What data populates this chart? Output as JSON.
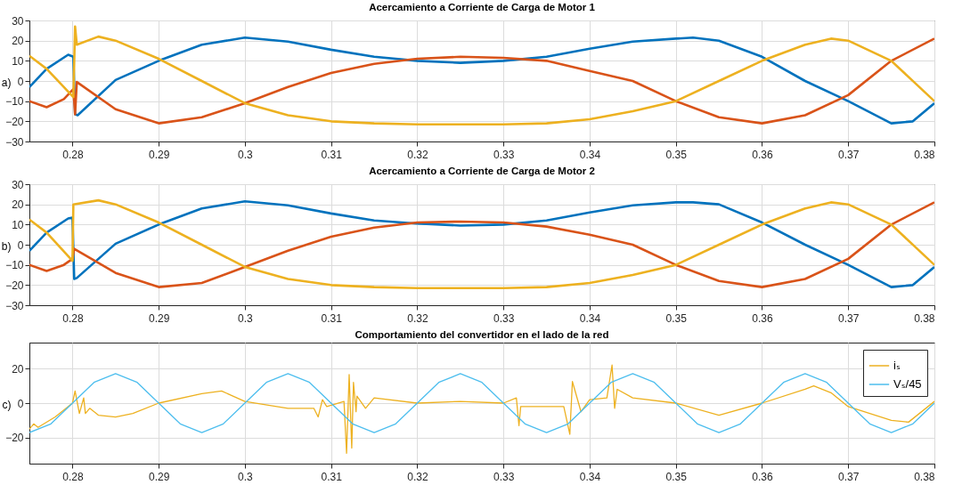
{
  "chart_data": [
    {
      "type": "line",
      "title": "Acercamiento a Corriente de Carga de Motor 1",
      "ylabel": "a)",
      "xlim": [
        0.275,
        0.38
      ],
      "xticks": [
        0.28,
        0.29,
        0.3,
        0.31,
        0.32,
        0.33,
        0.34,
        0.35,
        0.36,
        0.37,
        0.38
      ],
      "ylim": [
        -30,
        30
      ],
      "yticks": [
        -30,
        -20,
        -10,
        0,
        10,
        20,
        30
      ],
      "grid": true,
      "series": [
        {
          "color": "#0072bd",
          "x": [
            0.275,
            0.277,
            0.2795,
            0.2801,
            0.2803,
            0.2806,
            0.285,
            0.29,
            0.295,
            0.3,
            0.305,
            0.31,
            0.315,
            0.32,
            0.325,
            0.33,
            0.335,
            0.34,
            0.345,
            0.35,
            0.352,
            0.355,
            0.36,
            0.365,
            0.37,
            0.375,
            0.3775,
            0.38
          ],
          "values": [
            -3,
            6,
            13,
            12,
            -16.5,
            -17,
            0.5,
            10,
            18,
            21.5,
            19.5,
            15.5,
            12,
            10,
            9,
            10,
            12,
            16,
            19.5,
            21,
            21.5,
            20,
            12,
            0,
            -10,
            -21,
            -20,
            -11
          ]
        },
        {
          "color": "#d95319",
          "x": [
            0.275,
            0.277,
            0.279,
            0.2801,
            0.2803,
            0.2805,
            0.285,
            0.29,
            0.295,
            0.3,
            0.305,
            0.31,
            0.315,
            0.32,
            0.325,
            0.33,
            0.335,
            0.34,
            0.345,
            0.35,
            0.355,
            0.36,
            0.365,
            0.37,
            0.375,
            0.38
          ],
          "values": [
            -10,
            -13,
            -9,
            -4,
            -16.5,
            -0.5,
            -14,
            -21,
            -18,
            -11,
            -3,
            4,
            8.5,
            11,
            12,
            11.5,
            10,
            5,
            0,
            -10,
            -18,
            -21,
            -17,
            -7,
            10,
            21
          ]
        },
        {
          "color": "#edb120",
          "x": [
            0.275,
            0.277,
            0.2801,
            0.2803,
            0.2805,
            0.283,
            0.285,
            0.29,
            0.295,
            0.3,
            0.305,
            0.31,
            0.315,
            0.32,
            0.33,
            0.335,
            0.34,
            0.345,
            0.35,
            0.355,
            0.36,
            0.365,
            0.368,
            0.37,
            0.375,
            0.38
          ],
          "values": [
            12.5,
            6,
            -8,
            27,
            18,
            22,
            20,
            11,
            0,
            -11,
            -17,
            -20,
            -21,
            -21.5,
            -21.5,
            -21,
            -19,
            -15,
            -10,
            0,
            10,
            18,
            21,
            20,
            10,
            -10
          ]
        }
      ]
    },
    {
      "type": "line",
      "title": "Acercamiento a Corriente de Carga de Motor 2",
      "ylabel": "b)",
      "xlim": [
        0.275,
        0.38
      ],
      "xticks": [
        0.28,
        0.29,
        0.3,
        0.31,
        0.32,
        0.33,
        0.34,
        0.35,
        0.36,
        0.37,
        0.38
      ],
      "ylim": [
        -30,
        30
      ],
      "yticks": [
        -30,
        -20,
        -10,
        0,
        10,
        20,
        30
      ],
      "grid": true,
      "series": [
        {
          "color": "#0072bd",
          "x": [
            0.275,
            0.277,
            0.2795,
            0.28,
            0.2802,
            0.2805,
            0.285,
            0.29,
            0.295,
            0.3,
            0.305,
            0.31,
            0.315,
            0.32,
            0.325,
            0.33,
            0.335,
            0.34,
            0.345,
            0.35,
            0.352,
            0.355,
            0.36,
            0.365,
            0.37,
            0.375,
            0.3775,
            0.38
          ],
          "values": [
            -3,
            6,
            13,
            13.5,
            -17,
            -16.5,
            0.5,
            10,
            18,
            21.5,
            19.5,
            15.5,
            12,
            10.5,
            9.5,
            10,
            12,
            16,
            19.5,
            21,
            21,
            20,
            11,
            0,
            -10,
            -21,
            -20,
            -11
          ]
        },
        {
          "color": "#d95319",
          "x": [
            0.275,
            0.277,
            0.279,
            0.28,
            0.2802,
            0.285,
            0.29,
            0.295,
            0.3,
            0.305,
            0.31,
            0.315,
            0.32,
            0.325,
            0.33,
            0.335,
            0.34,
            0.345,
            0.35,
            0.355,
            0.36,
            0.365,
            0.37,
            0.375,
            0.38
          ],
          "values": [
            -10,
            -13,
            -10,
            -7,
            -2,
            -14,
            -21,
            -19,
            -11,
            -3,
            4,
            8.5,
            11,
            11.5,
            11,
            9,
            5,
            0,
            -10,
            -18,
            -21,
            -17,
            -7,
            10,
            21
          ]
        },
        {
          "color": "#edb120",
          "x": [
            0.275,
            0.277,
            0.28,
            0.2801,
            0.283,
            0.285,
            0.29,
            0.295,
            0.3,
            0.305,
            0.31,
            0.315,
            0.32,
            0.33,
            0.335,
            0.34,
            0.345,
            0.35,
            0.355,
            0.36,
            0.365,
            0.368,
            0.37,
            0.375,
            0.38
          ],
          "values": [
            12.5,
            6,
            -8,
            20,
            22,
            20,
            11,
            0,
            -11,
            -17,
            -20,
            -21,
            -21.5,
            -21.5,
            -21,
            -19,
            -15,
            -10,
            0,
            10,
            18,
            21,
            20,
            10,
            -10
          ]
        }
      ]
    },
    {
      "type": "line",
      "title": "Comportamiento del convertidor en el lado de la red",
      "ylabel": "c)",
      "xlim": [
        0.275,
        0.38
      ],
      "xticks": [
        0.28,
        0.29,
        0.3,
        0.31,
        0.32,
        0.33,
        0.34,
        0.35,
        0.36,
        0.37,
        0.38
      ],
      "ylim": [
        -35,
        35
      ],
      "yticks": [
        -20,
        0,
        20
      ],
      "grid": true,
      "legend": "top right",
      "series": [
        {
          "name": "iₛ",
          "color": "#edb120",
          "x": [
            0.275,
            0.2755,
            0.276,
            0.278,
            0.28,
            0.2803,
            0.2808,
            0.2813,
            0.2815,
            0.282,
            0.283,
            0.285,
            0.287,
            0.29,
            0.295,
            0.2973,
            0.3,
            0.305,
            0.308,
            0.3085,
            0.309,
            0.3095,
            0.3115,
            0.3118,
            0.3121,
            0.3124,
            0.3126,
            0.3129,
            0.313,
            0.314,
            0.315,
            0.32,
            0.325,
            0.33,
            0.3315,
            0.3318,
            0.332,
            0.335,
            0.337,
            0.3377,
            0.338,
            0.339,
            0.34,
            0.342,
            0.3426,
            0.3429,
            0.3432,
            0.345,
            0.35,
            0.355,
            0.36,
            0.365,
            0.366,
            0.368,
            0.37,
            0.375,
            0.377,
            0.38
          ],
          "values": [
            -15,
            -12,
            -14,
            -8,
            0,
            7,
            -6,
            3,
            -6,
            -3,
            -7,
            -8,
            -6,
            0,
            5.5,
            7,
            1,
            -3,
            -3,
            -8,
            2,
            -2,
            1,
            -29,
            16.5,
            -26,
            12,
            -5,
            4,
            -3,
            3,
            0,
            1,
            0,
            3,
            -13,
            -2,
            -2,
            -2,
            -18,
            12.5,
            -5,
            2,
            3,
            22,
            -3,
            8,
            3,
            0,
            -7,
            0,
            8,
            10,
            6,
            -2,
            -10,
            -11,
            1
          ]
        },
        {
          "name": "Vₛ/45",
          "color": "#4dbeee",
          "x": [
            0.275,
            0.2775,
            0.28,
            0.2825,
            0.285,
            0.2875,
            0.29,
            0.2925,
            0.295,
            0.2975,
            0.3,
            0.3025,
            0.305,
            0.3075,
            0.31,
            0.3125,
            0.315,
            0.3175,
            0.32,
            0.3225,
            0.325,
            0.3275,
            0.33,
            0.3325,
            0.335,
            0.3375,
            0.34,
            0.3425,
            0.345,
            0.3475,
            0.35,
            0.3525,
            0.355,
            0.3575,
            0.36,
            0.3625,
            0.365,
            0.3675,
            0.37,
            0.3725,
            0.375,
            0.3775,
            0.38
          ],
          "values": [
            -17,
            -12,
            0,
            12,
            17,
            12,
            0,
            -12,
            -17,
            -12,
            0,
            12,
            17,
            12,
            0,
            -12,
            -17,
            -12,
            0,
            12,
            17,
            12,
            0,
            -12,
            -17,
            -12,
            0,
            12,
            17,
            12,
            0,
            -12,
            -17,
            -12,
            0,
            12,
            17,
            12,
            0,
            -12,
            -17,
            -12,
            0
          ]
        }
      ]
    }
  ]
}
